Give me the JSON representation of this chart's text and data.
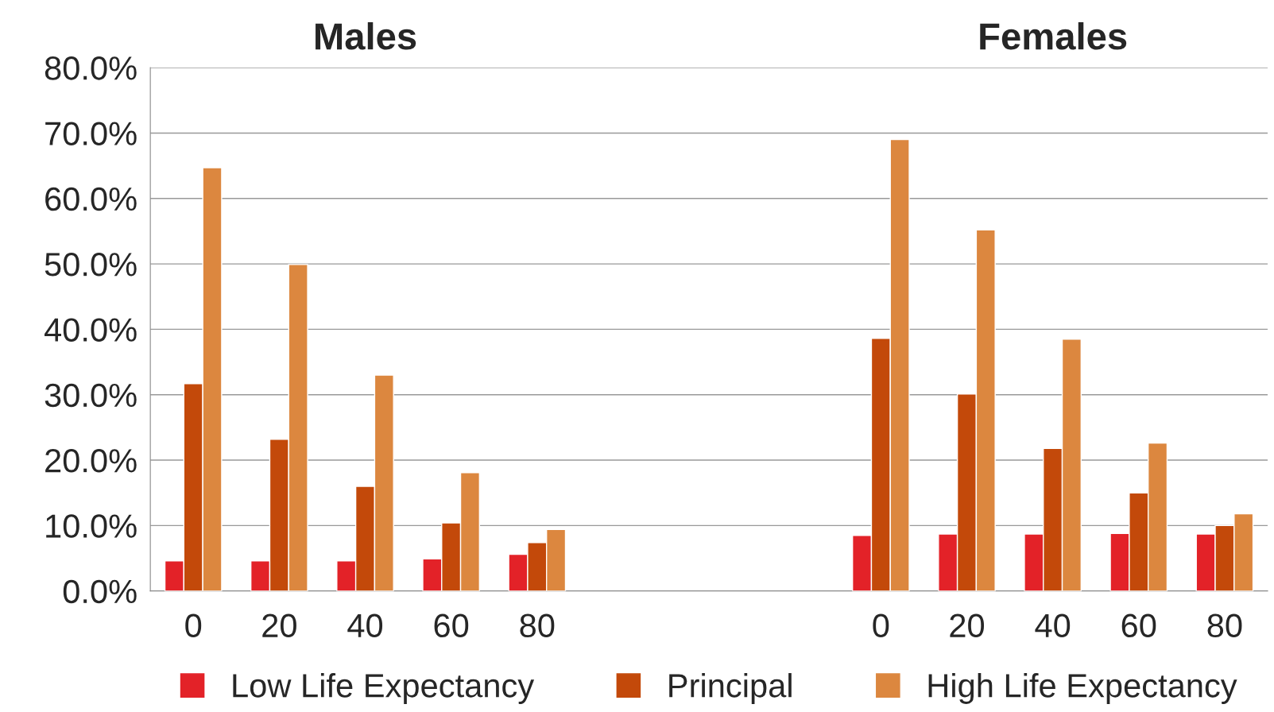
{
  "chart_data": {
    "type": "bar",
    "categories": [
      "0",
      "20",
      "40",
      "60",
      "80",
      null,
      null,
      null,
      "0",
      "20",
      "40",
      "60",
      "80"
    ],
    "series": [
      {
        "name": "Low Life Expectancy",
        "color": "#e32228",
        "values": [
          4.6,
          4.6,
          4.6,
          4.9,
          5.6,
          null,
          null,
          null,
          8.5,
          8.7,
          8.7,
          8.8,
          8.7
        ]
      },
      {
        "name": "Principal",
        "color": "#c3490a",
        "values": [
          31.7,
          23.2,
          16.0,
          10.4,
          7.4,
          null,
          null,
          null,
          38.6,
          30.1,
          21.8,
          15.0,
          10.0
        ]
      },
      {
        "name": "High Life Expectancy",
        "color": "#dc873f",
        "values": [
          64.7,
          49.9,
          33.0,
          18.1,
          9.4,
          null,
          null,
          null,
          69.0,
          55.2,
          38.5,
          22.6,
          11.8
        ]
      }
    ],
    "annotations": [
      "Males",
      "Females"
    ],
    "ylim": [
      0,
      80
    ],
    "yticks": [
      {
        "value": 0,
        "label": "0.0%"
      },
      {
        "value": 10,
        "label": "10.0%"
      },
      {
        "value": 20,
        "label": "20.0%"
      },
      {
        "value": 30,
        "label": "30.0%"
      },
      {
        "value": 40,
        "label": "40.0%"
      },
      {
        "value": 50,
        "label": "50.0%"
      },
      {
        "value": 60,
        "label": "60.0%"
      },
      {
        "value": 70,
        "label": "70.0%"
      },
      {
        "value": 80,
        "label": "80.0%"
      }
    ],
    "grid": "y",
    "legend": "bottom"
  }
}
